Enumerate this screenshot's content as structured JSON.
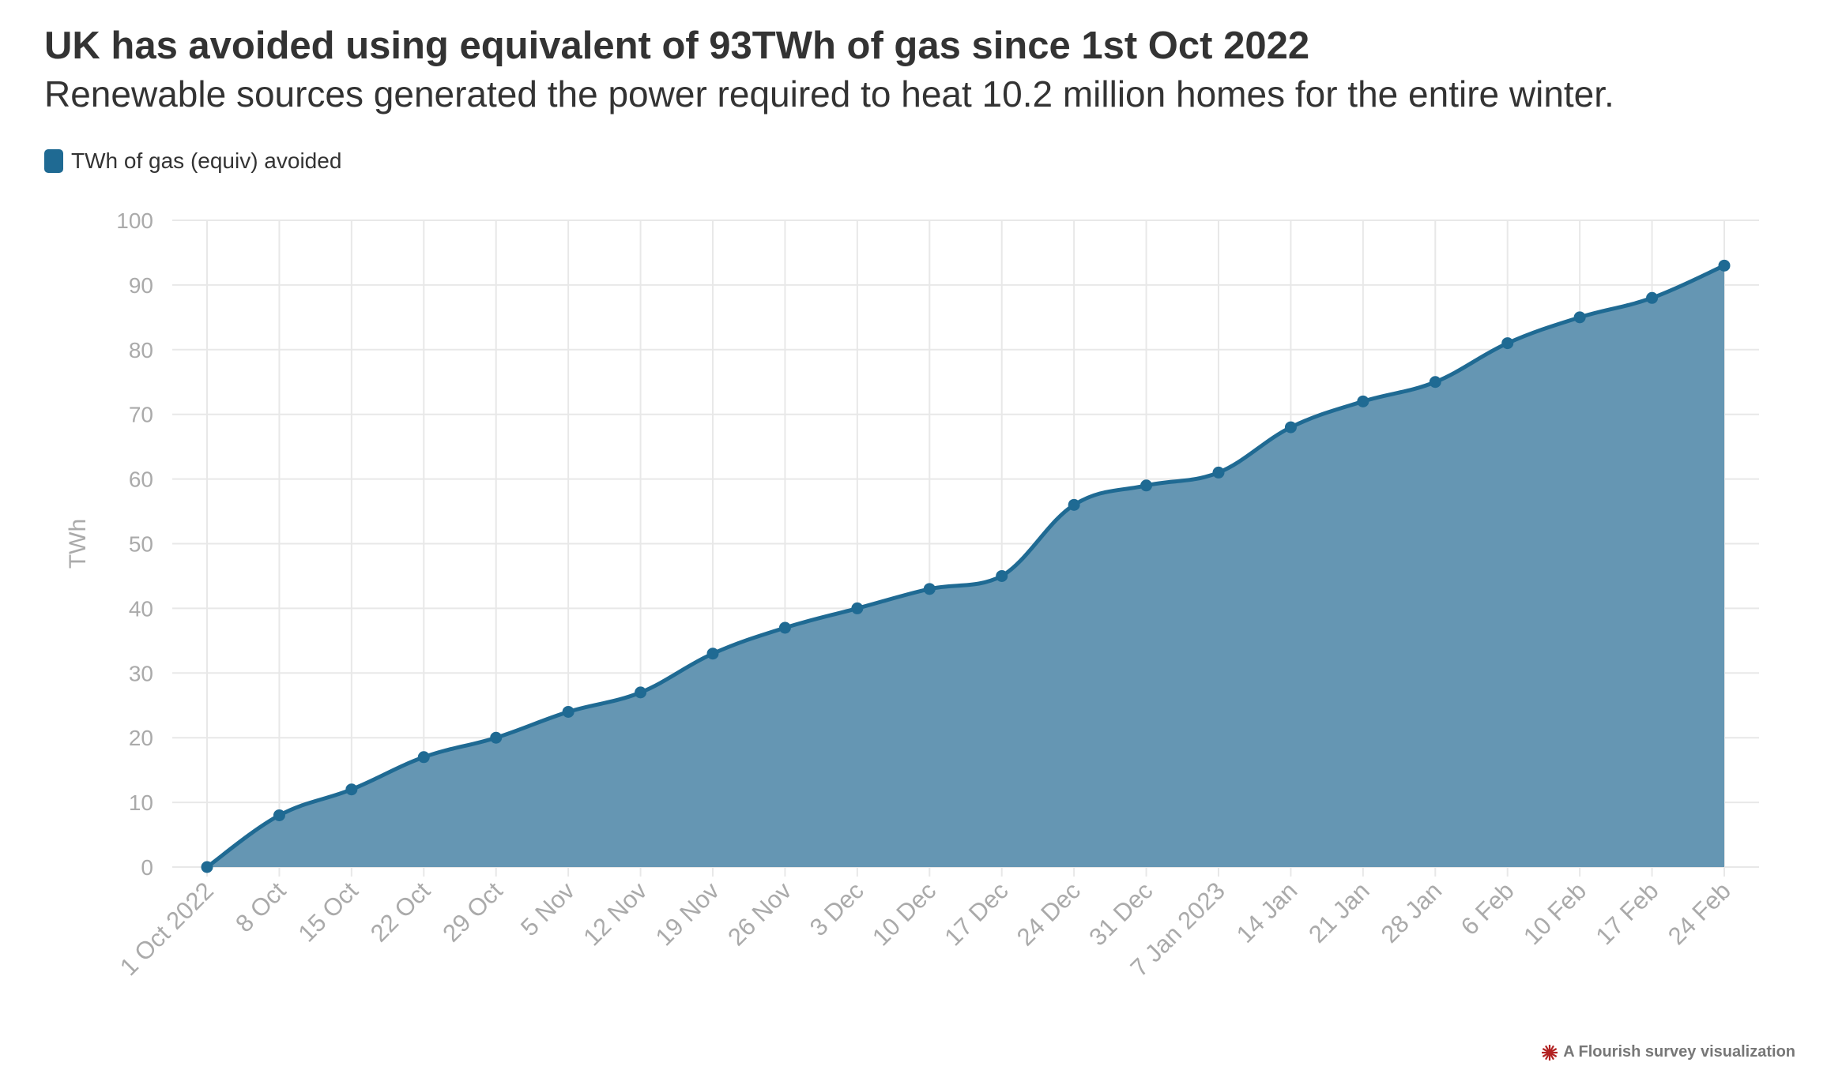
{
  "header": {
    "title": "UK has avoided using equivalent of 93TWh of gas since 1st Oct 2022",
    "subtitle": "Renewable sources generated the power required to heat 10.2 million homes for the entire winter."
  },
  "legend": {
    "label": "TWh of gas (equiv) avoided",
    "icon": "legend-swatch"
  },
  "footer": {
    "label": "A Flourish survey visualization",
    "icon": "flourish-logo-icon"
  },
  "colors": {
    "line": "#1f6a93",
    "area": "#6596b3",
    "grid": "#e8e8e8",
    "tick_text": "#aaaaaa",
    "accent_icon": "#b22222"
  },
  "chart_data": {
    "type": "area",
    "categories": [
      "1 Oct 2022",
      "8 Oct",
      "15 Oct",
      "22 Oct",
      "29 Oct",
      "5 Nov",
      "12 Nov",
      "19 Nov",
      "26 Nov",
      "3 Dec",
      "10 Dec",
      "17 Dec",
      "24 Dec",
      "31 Dec",
      "7 Jan 2023",
      "14 Jan",
      "21 Jan",
      "28 Jan",
      "6 Feb",
      "10 Feb",
      "17 Feb",
      "24 Feb"
    ],
    "series": [
      {
        "name": "TWh of gas (equiv) avoided",
        "values": [
          0,
          8,
          12,
          17,
          20,
          24,
          27,
          33,
          37,
          40,
          43,
          45,
          56,
          59,
          61,
          68,
          72,
          75,
          81,
          85,
          88,
          93
        ]
      }
    ],
    "ylabel": "TWh",
    "xlabel": "",
    "ylim": [
      0,
      100
    ],
    "yticks": [
      0,
      10,
      20,
      30,
      40,
      50,
      60,
      70,
      80,
      90,
      100
    ],
    "grid": true,
    "markers": true,
    "legend_position": "top-left"
  }
}
